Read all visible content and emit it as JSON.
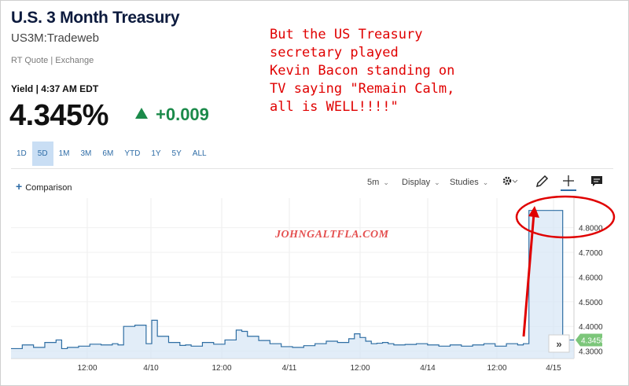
{
  "header": {
    "title": "U.S. 3 Month Treasury",
    "symbol": "US3M:Tradeweb",
    "quote_source": "RT Quote | Exchange",
    "yield_label": "Yield | 4:37 AM EDT",
    "price": "4.345%",
    "change": "+0.009"
  },
  "ranges": [
    {
      "label": "1D",
      "active": false
    },
    {
      "label": "5D",
      "active": true
    },
    {
      "label": "1M",
      "active": false
    },
    {
      "label": "3M",
      "active": false
    },
    {
      "label": "6M",
      "active": false
    },
    {
      "label": "YTD",
      "active": false
    },
    {
      "label": "1Y",
      "active": false
    },
    {
      "label": "5Y",
      "active": false
    },
    {
      "label": "ALL",
      "active": false
    }
  ],
  "toolbar": {
    "comparison_label": "Comparison",
    "interval_label": "5m",
    "display_label": "Display",
    "studies_label": "Studies"
  },
  "annotation": {
    "lines": [
      "But the US Treasury",
      "secretary played",
      "Kevin Bacon standing on",
      "TV saying \"Remain Calm,",
      "all is WELL!!!!\""
    ],
    "color": "#e00000"
  },
  "watermark": "JOHNGALTFLA.COM",
  "colors": {
    "line": "#2f6ea3",
    "area": "#d6e6f5",
    "last_price_tag": "#7cc67a",
    "positive": "#1b8a4a",
    "accent": "#2e6ca6"
  },
  "chart_data": {
    "type": "area",
    "y_ticks": [
      "4.8000",
      "4.7000",
      "4.6000",
      "4.5000",
      "4.4000",
      "4.3000"
    ],
    "x_ticks": [
      "12:00",
      "4/10",
      "12:00",
      "4/11",
      "12:00",
      "4/14",
      "12:00",
      "4/15"
    ],
    "ylim": [
      4.27,
      4.92
    ],
    "last_price_label": "4.3450",
    "x": [
      0,
      2,
      4,
      6,
      8,
      9,
      10,
      12,
      14,
      16,
      18,
      19,
      20,
      22,
      24,
      25,
      26,
      28,
      30,
      31,
      32,
      34,
      36,
      38,
      40,
      41,
      42,
      44,
      46,
      48,
      50,
      52,
      54,
      56,
      58,
      60,
      61,
      62,
      63,
      64,
      65,
      66,
      67,
      68,
      70,
      72,
      74,
      76,
      78,
      80,
      82,
      84,
      86,
      88,
      90,
      91,
      92,
      93,
      94,
      95,
      96,
      98,
      100
    ],
    "values": [
      4.31,
      4.325,
      4.315,
      4.335,
      4.345,
      4.31,
      4.315,
      4.32,
      4.328,
      4.325,
      4.33,
      4.325,
      4.4,
      4.405,
      4.33,
      4.425,
      4.36,
      4.335,
      4.323,
      4.325,
      4.32,
      4.335,
      4.328,
      4.345,
      4.385,
      4.38,
      4.36,
      4.343,
      4.33,
      4.318,
      4.315,
      4.322,
      4.33,
      4.34,
      4.335,
      4.35,
      4.37,
      4.355,
      4.34,
      4.33,
      4.332,
      4.335,
      4.33,
      4.325,
      4.327,
      4.33,
      4.325,
      4.32,
      4.325,
      4.32,
      4.325,
      4.33,
      4.32,
      4.33,
      4.325,
      4.33,
      4.87,
      4.87,
      4.87,
      4.87,
      4.87,
      4.345,
      4.345
    ]
  }
}
